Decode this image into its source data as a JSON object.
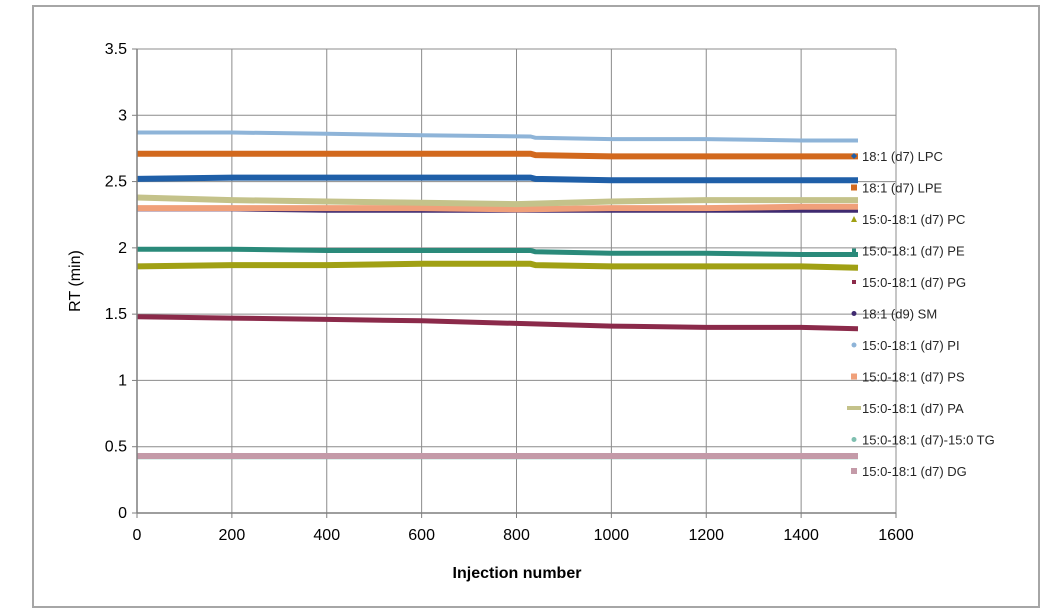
{
  "chart_data": {
    "type": "line",
    "title": "",
    "xlabel": "Injection number",
    "ylabel": "RT (min)",
    "xlim": [
      0,
      1600
    ],
    "ylim": [
      0,
      3.5
    ],
    "x_ticks": [
      "0",
      "200",
      "400",
      "600",
      "800",
      "1000",
      "1200",
      "1400",
      "1600"
    ],
    "y_ticks": [
      "0",
      "0.5",
      "1",
      "1.5",
      "2",
      "2.5",
      "3",
      "3.5"
    ],
    "grid": true,
    "legend_position": "right",
    "series": [
      {
        "name": "18:1 (d7) LPC",
        "color": "#1f5fa8",
        "marker": "diamond",
        "x": [
          0,
          200,
          400,
          600,
          830,
          840,
          1000,
          1200,
          1400,
          1520
        ],
        "y": [
          2.52,
          2.53,
          2.53,
          2.53,
          2.53,
          2.52,
          2.51,
          2.51,
          2.51,
          2.51
        ]
      },
      {
        "name": "18:1 (d7) LPE",
        "color": "#d2691e",
        "marker": "square",
        "x": [
          0,
          200,
          400,
          600,
          830,
          840,
          1000,
          1200,
          1400,
          1520
        ],
        "y": [
          2.71,
          2.71,
          2.71,
          2.71,
          2.71,
          2.7,
          2.69,
          2.69,
          2.69,
          2.69
        ]
      },
      {
        "name": "15:0-18:1 (d7) PC",
        "color": "#a0a014",
        "marker": "triangle",
        "x": [
          0,
          200,
          400,
          600,
          830,
          840,
          1000,
          1200,
          1400,
          1520
        ],
        "y": [
          1.86,
          1.87,
          1.87,
          1.88,
          1.88,
          1.87,
          1.86,
          1.86,
          1.86,
          1.85
        ]
      },
      {
        "name": "15:0-18:1 (d7) PE",
        "color": "#2a8a7a",
        "marker": "x",
        "x": [
          0,
          200,
          400,
          600,
          830,
          840,
          1000,
          1200,
          1400,
          1520
        ],
        "y": [
          1.99,
          1.99,
          1.98,
          1.98,
          1.98,
          1.97,
          1.96,
          1.96,
          1.95,
          1.95
        ]
      },
      {
        "name": "15:0-18:1 (d7) PG",
        "color": "#8b2a4a",
        "marker": "x",
        "x": [
          0,
          200,
          400,
          600,
          800,
          1000,
          1200,
          1400,
          1520
        ],
        "y": [
          1.48,
          1.47,
          1.46,
          1.45,
          1.43,
          1.41,
          1.4,
          1.4,
          1.39
        ]
      },
      {
        "name": "18:1 (d9) SM",
        "color": "#3f2a70",
        "marker": "circle",
        "x": [
          0,
          200,
          400,
          600,
          800,
          1000,
          1200,
          1400,
          1520
        ],
        "y": [
          2.29,
          2.29,
          2.28,
          2.28,
          2.28,
          2.28,
          2.28,
          2.28,
          2.28
        ]
      },
      {
        "name": "15:0-18:1 (d7) PI",
        "color": "#8eb4d8",
        "marker": "circle",
        "x": [
          0,
          200,
          400,
          600,
          830,
          840,
          1000,
          1200,
          1400,
          1520
        ],
        "y": [
          2.87,
          2.87,
          2.86,
          2.85,
          2.84,
          2.83,
          2.82,
          2.82,
          2.81,
          2.81
        ]
      },
      {
        "name": "15:0-18:1 (d7) PS",
        "color": "#f0a07a",
        "marker": "square",
        "x": [
          0,
          200,
          400,
          600,
          800,
          1000,
          1200,
          1400,
          1520
        ],
        "y": [
          2.3,
          2.3,
          2.3,
          2.3,
          2.29,
          2.3,
          2.3,
          2.31,
          2.31
        ]
      },
      {
        "name": "15:0-18:1 (d7) PA",
        "color": "#c4c28a",
        "marker": "dash",
        "x": [
          0,
          200,
          400,
          600,
          800,
          1000,
          1200,
          1400,
          1520
        ],
        "y": [
          2.38,
          2.36,
          2.35,
          2.34,
          2.33,
          2.35,
          2.36,
          2.36,
          2.36
        ]
      },
      {
        "name": "15:0-18:1 (d7)-15:0 TG",
        "color": "#7fbfb0",
        "marker": "circle",
        "x": [
          0,
          400,
          800,
          1200,
          1520
        ],
        "y": [
          0.42,
          0.42,
          0.42,
          0.42,
          0.42
        ]
      },
      {
        "name": "15:0-18:1 (d7) DG",
        "color": "#c49aa8",
        "marker": "square",
        "x": [
          0,
          400,
          800,
          1200,
          1520
        ],
        "y": [
          0.43,
          0.43,
          0.43,
          0.43,
          0.43
        ]
      }
    ]
  }
}
